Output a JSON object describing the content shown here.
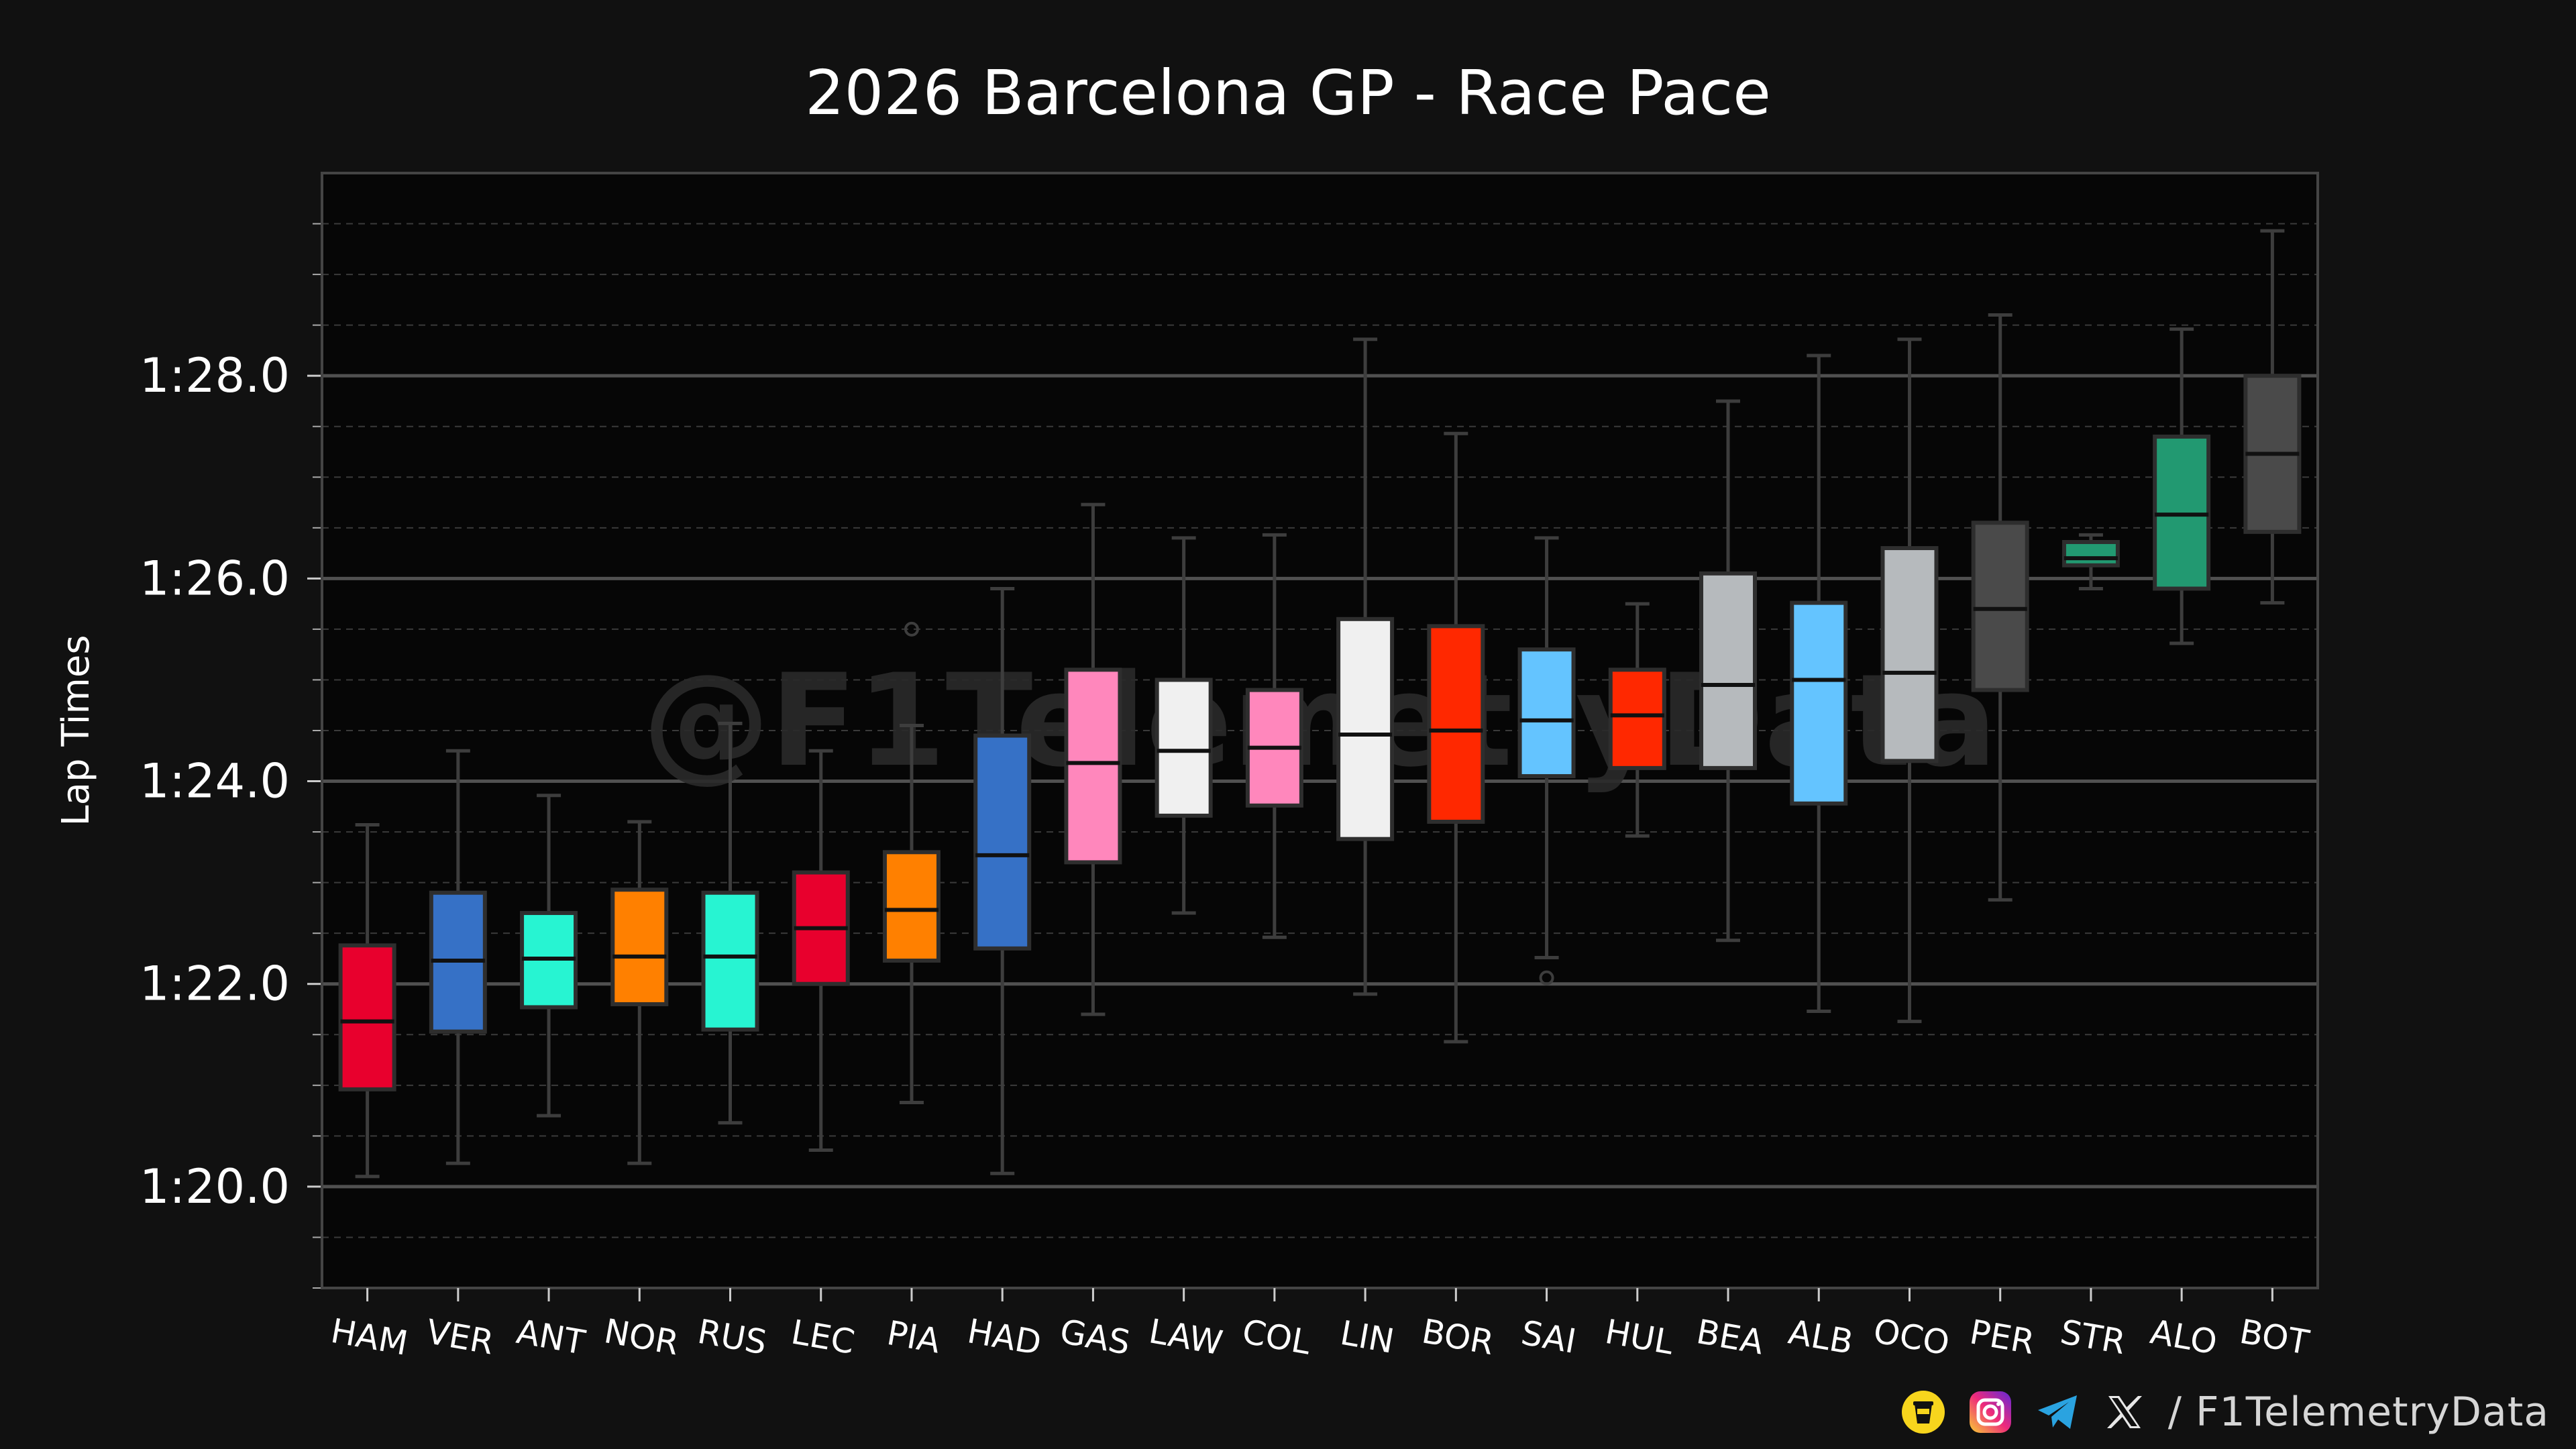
{
  "chart_data": {
    "type": "box",
    "title": "2026 Barcelona GP - Race Pace",
    "ylabel": "Lap Times",
    "xlabel": "",
    "watermark": "@F1TelemetryData",
    "ylim_seconds": [
      79.0,
      90.0
    ],
    "y_ticks": [
      {
        "value": 80,
        "label": "1:20.0"
      },
      {
        "value": 82,
        "label": "1:22.0"
      },
      {
        "value": 84,
        "label": "1:24.0"
      },
      {
        "value": 86,
        "label": "1:26.0"
      },
      {
        "value": 88,
        "label": "1:28.0"
      }
    ],
    "grid": true,
    "drivers": [
      {
        "label": "HAM",
        "color": "#E8002D",
        "min": 80.1,
        "q1": 80.96,
        "median": 81.63,
        "q3": 82.38,
        "max": 83.57,
        "outliers": []
      },
      {
        "label": "VER",
        "color": "#3671C6",
        "min": 80.23,
        "q1": 81.53,
        "median": 82.23,
        "q3": 82.9,
        "max": 84.3,
        "outliers": []
      },
      {
        "label": "ANT",
        "color": "#27F4D2",
        "min": 80.7,
        "q1": 81.77,
        "median": 82.25,
        "q3": 82.7,
        "max": 83.86,
        "outliers": []
      },
      {
        "label": "NOR",
        "color": "#FF8000",
        "min": 80.23,
        "q1": 81.8,
        "median": 82.27,
        "q3": 82.93,
        "max": 83.6,
        "outliers": []
      },
      {
        "label": "RUS",
        "color": "#27F4D2",
        "min": 80.63,
        "q1": 81.55,
        "median": 82.27,
        "q3": 82.9,
        "max": 84.57,
        "outliers": []
      },
      {
        "label": "LEC",
        "color": "#E8002D",
        "min": 80.36,
        "q1": 82.0,
        "median": 82.55,
        "q3": 83.1,
        "max": 84.3,
        "outliers": []
      },
      {
        "label": "PIA",
        "color": "#FF8000",
        "min": 80.83,
        "q1": 82.23,
        "median": 82.73,
        "q3": 83.3,
        "max": 84.55,
        "outliers": [
          85.5
        ]
      },
      {
        "label": "HAD",
        "color": "#3671C6",
        "min": 80.13,
        "q1": 82.35,
        "median": 83.27,
        "q3": 84.45,
        "max": 85.9,
        "outliers": []
      },
      {
        "label": "GAS",
        "color": "#FF87BC",
        "min": 81.7,
        "q1": 83.2,
        "median": 84.18,
        "q3": 85.1,
        "max": 86.73,
        "outliers": []
      },
      {
        "label": "LAW",
        "color": "#F0F0F0",
        "min": 82.7,
        "q1": 83.66,
        "median": 84.3,
        "q3": 85.0,
        "max": 86.4,
        "outliers": []
      },
      {
        "label": "COL",
        "color": "#FF87BC",
        "min": 82.46,
        "q1": 83.76,
        "median": 84.33,
        "q3": 84.9,
        "max": 86.43,
        "outliers": []
      },
      {
        "label": "LIN",
        "color": "#F0F0F0",
        "min": 81.9,
        "q1": 83.43,
        "median": 84.46,
        "q3": 85.6,
        "max": 88.36,
        "outliers": []
      },
      {
        "label": "BOR",
        "color": "#FF2800",
        "min": 81.43,
        "q1": 83.6,
        "median": 84.5,
        "q3": 85.53,
        "max": 87.43,
        "outliers": []
      },
      {
        "label": "SAI",
        "color": "#64C4FF",
        "min": 82.26,
        "q1": 84.05,
        "median": 84.6,
        "q3": 85.3,
        "max": 86.4,
        "outliers": [
          82.06
        ]
      },
      {
        "label": "HUL",
        "color": "#FF2800",
        "min": 83.46,
        "q1": 84.13,
        "median": 84.65,
        "q3": 85.1,
        "max": 85.75,
        "outliers": []
      },
      {
        "label": "BEA",
        "color": "#B6BABD",
        "min": 82.43,
        "q1": 84.13,
        "median": 84.95,
        "q3": 86.05,
        "max": 87.75,
        "outliers": []
      },
      {
        "label": "ALB",
        "color": "#64C4FF",
        "min": 81.73,
        "q1": 83.78,
        "median": 85.0,
        "q3": 85.76,
        "max": 88.2,
        "outliers": []
      },
      {
        "label": "OCO",
        "color": "#B6BABD",
        "min": 81.63,
        "q1": 84.2,
        "median": 85.07,
        "q3": 86.3,
        "max": 88.36,
        "outliers": []
      },
      {
        "label": "PER",
        "color": "#4A4A4A",
        "min": 82.83,
        "q1": 84.9,
        "median": 85.7,
        "q3": 86.55,
        "max": 88.6,
        "outliers": []
      },
      {
        "label": "STR",
        "color": "#229971",
        "min": 85.9,
        "q1": 86.13,
        "median": 86.2,
        "q3": 86.36,
        "max": 86.43,
        "outliers": []
      },
      {
        "label": "ALO",
        "color": "#229971",
        "min": 85.36,
        "q1": 85.9,
        "median": 86.63,
        "q3": 87.4,
        "max": 88.46,
        "outliers": []
      },
      {
        "label": "BOT",
        "color": "#4A4A4A",
        "min": 85.76,
        "q1": 86.46,
        "median": 87.23,
        "q3": 88.0,
        "max": 89.43,
        "outliers": []
      }
    ]
  },
  "footer": {
    "handle": "/ F1TelemetryData",
    "icons": [
      "coffee-cup-icon",
      "instagram-icon",
      "telegram-icon",
      "x-icon"
    ]
  }
}
